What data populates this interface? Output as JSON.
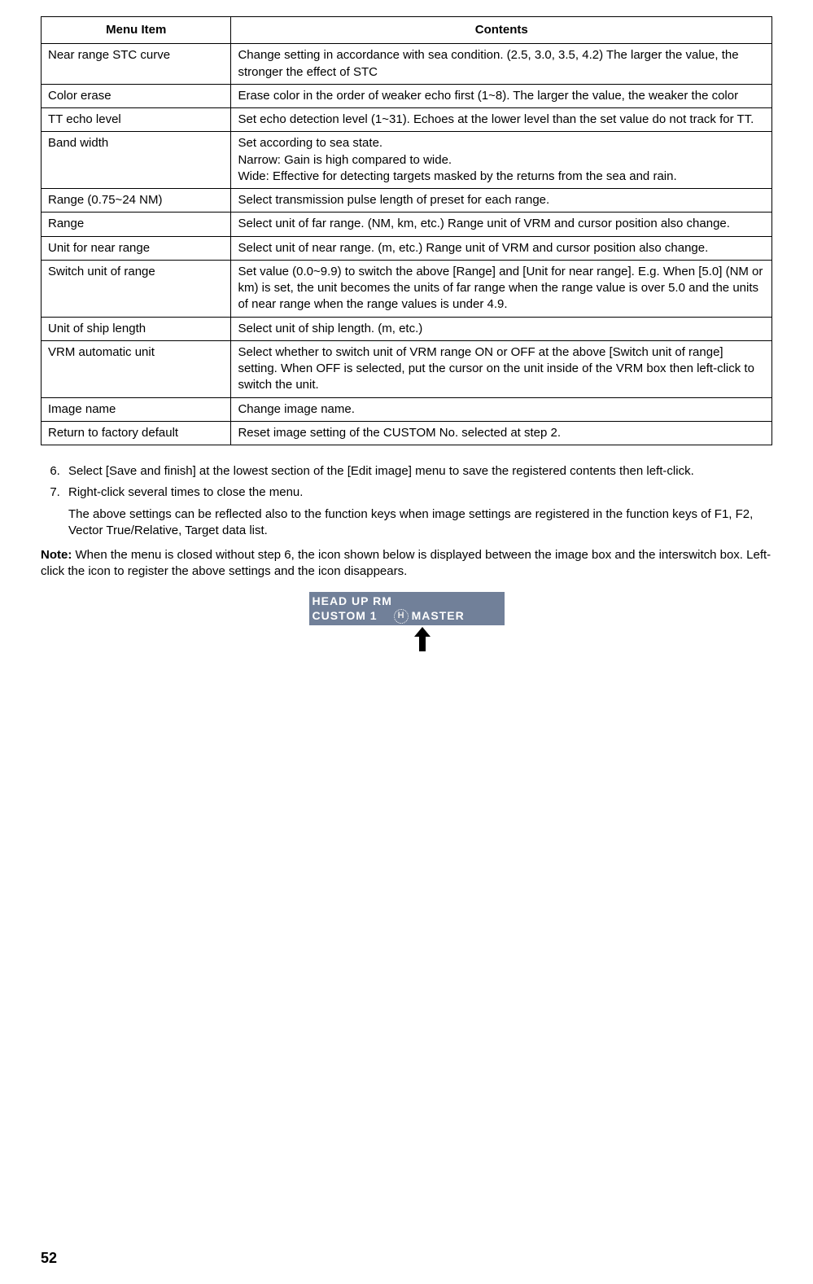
{
  "table": {
    "header_menu": "Menu Item",
    "header_contents": "Contents",
    "rows": [
      {
        "menu": "Near range STC curve",
        "contents": "Change setting in accordance with sea condition. (2.5, 3.0, 3.5, 4.2) The larger the value, the stronger the effect of STC"
      },
      {
        "menu": "Color erase",
        "contents": "Erase color in the order of weaker echo first (1~8). The larger the value, the weaker the color"
      },
      {
        "menu": "TT echo level",
        "contents": "Set echo detection level (1~31). Echoes at the lower level than the set value do not track for TT."
      },
      {
        "menu": "Band width",
        "contents": "Set according to sea state.\nNarrow: Gain is high compared to wide.\nWide: Effective for detecting targets masked by the returns from the sea and rain."
      },
      {
        "menu": "Range (0.75~24 NM)",
        "contents": "Select transmission pulse length of preset for each range."
      },
      {
        "menu": "Range",
        "contents": "Select unit of far range. (NM, km, etc.) Range unit of VRM and cursor position also change."
      },
      {
        "menu": "Unit for near range",
        "contents": "Select unit of near range. (m, etc.) Range unit of VRM and cursor position also change."
      },
      {
        "menu": "Switch unit of range",
        "contents": "Set value (0.0~9.9) to switch the above [Range] and [Unit for near range]. E.g. When [5.0] (NM or km) is set, the unit becomes the units of far range when the range value is over 5.0 and the units of near range when the range values is under 4.9."
      },
      {
        "menu": "Unit of ship length",
        "contents": "Select unit of ship length. (m, etc.)"
      },
      {
        "menu": "VRM automatic unit",
        "contents": "Select whether to switch unit of VRM range ON or OFF at the above [Switch unit of range] setting. When OFF is selected, put the cursor on the unit inside of the VRM box then left-click to switch the unit."
      },
      {
        "menu": "Image name",
        "contents": "Change image name."
      },
      {
        "menu": "Return to factory default",
        "contents": "Reset image setting of the CUSTOM No. selected at step 2."
      }
    ]
  },
  "steps": {
    "start": 6,
    "item6": "Select [Save and finish] at the lowest section of the [Edit image] menu to save the registered contents then left-click.",
    "item7": "Right-click several times to close the menu.",
    "item7_sub": "The above settings can be reflected also to the function keys when image settings are registered in the function keys of F1, F2, Vector True/Relative, Target data list."
  },
  "note": {
    "label": "Note:",
    "text": "When the menu is closed without step 6, the icon shown below is displayed between the image box and the interswitch box. Left-click the icon to register the above settings and the icon disappears."
  },
  "badge": {
    "line1": "HEAD UP RM",
    "line2_left": "CUSTOM 1",
    "line2_icon": "H",
    "line2_right": "MASTER",
    "bg_color": "#718099",
    "text_color": "#ffffff"
  },
  "page_number": "52"
}
